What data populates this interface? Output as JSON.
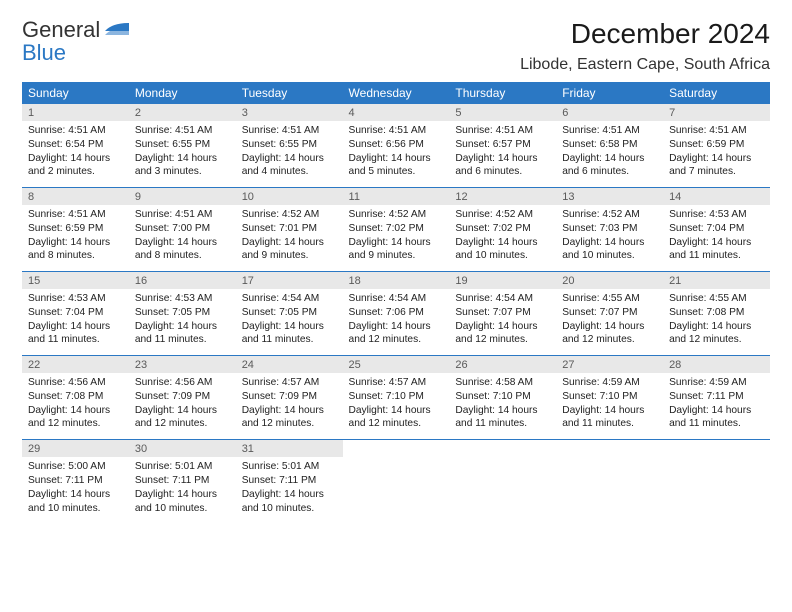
{
  "brand": {
    "word1": "General",
    "word2": "Blue"
  },
  "title": "December 2024",
  "location": "Libode, Eastern Cape, South Africa",
  "colors": {
    "header_bg": "#2b78c4",
    "header_text": "#ffffff",
    "daynum_bg": "#e8e8e8",
    "daynum_text": "#5a5a5a",
    "cell_text": "#222222",
    "rule": "#2b78c4",
    "page_bg": "#ffffff"
  },
  "day_headers": [
    "Sunday",
    "Monday",
    "Tuesday",
    "Wednesday",
    "Thursday",
    "Friday",
    "Saturday"
  ],
  "weeks": [
    [
      {
        "n": "1",
        "sr": "4:51 AM",
        "ss": "6:54 PM",
        "dl": "14 hours and 2 minutes."
      },
      {
        "n": "2",
        "sr": "4:51 AM",
        "ss": "6:55 PM",
        "dl": "14 hours and 3 minutes."
      },
      {
        "n": "3",
        "sr": "4:51 AM",
        "ss": "6:55 PM",
        "dl": "14 hours and 4 minutes."
      },
      {
        "n": "4",
        "sr": "4:51 AM",
        "ss": "6:56 PM",
        "dl": "14 hours and 5 minutes."
      },
      {
        "n": "5",
        "sr": "4:51 AM",
        "ss": "6:57 PM",
        "dl": "14 hours and 6 minutes."
      },
      {
        "n": "6",
        "sr": "4:51 AM",
        "ss": "6:58 PM",
        "dl": "14 hours and 6 minutes."
      },
      {
        "n": "7",
        "sr": "4:51 AM",
        "ss": "6:59 PM",
        "dl": "14 hours and 7 minutes."
      }
    ],
    [
      {
        "n": "8",
        "sr": "4:51 AM",
        "ss": "6:59 PM",
        "dl": "14 hours and 8 minutes."
      },
      {
        "n": "9",
        "sr": "4:51 AM",
        "ss": "7:00 PM",
        "dl": "14 hours and 8 minutes."
      },
      {
        "n": "10",
        "sr": "4:52 AM",
        "ss": "7:01 PM",
        "dl": "14 hours and 9 minutes."
      },
      {
        "n": "11",
        "sr": "4:52 AM",
        "ss": "7:02 PM",
        "dl": "14 hours and 9 minutes."
      },
      {
        "n": "12",
        "sr": "4:52 AM",
        "ss": "7:02 PM",
        "dl": "14 hours and 10 minutes."
      },
      {
        "n": "13",
        "sr": "4:52 AM",
        "ss": "7:03 PM",
        "dl": "14 hours and 10 minutes."
      },
      {
        "n": "14",
        "sr": "4:53 AM",
        "ss": "7:04 PM",
        "dl": "14 hours and 11 minutes."
      }
    ],
    [
      {
        "n": "15",
        "sr": "4:53 AM",
        "ss": "7:04 PM",
        "dl": "14 hours and 11 minutes."
      },
      {
        "n": "16",
        "sr": "4:53 AM",
        "ss": "7:05 PM",
        "dl": "14 hours and 11 minutes."
      },
      {
        "n": "17",
        "sr": "4:54 AM",
        "ss": "7:05 PM",
        "dl": "14 hours and 11 minutes."
      },
      {
        "n": "18",
        "sr": "4:54 AM",
        "ss": "7:06 PM",
        "dl": "14 hours and 12 minutes."
      },
      {
        "n": "19",
        "sr": "4:54 AM",
        "ss": "7:07 PM",
        "dl": "14 hours and 12 minutes."
      },
      {
        "n": "20",
        "sr": "4:55 AM",
        "ss": "7:07 PM",
        "dl": "14 hours and 12 minutes."
      },
      {
        "n": "21",
        "sr": "4:55 AM",
        "ss": "7:08 PM",
        "dl": "14 hours and 12 minutes."
      }
    ],
    [
      {
        "n": "22",
        "sr": "4:56 AM",
        "ss": "7:08 PM",
        "dl": "14 hours and 12 minutes."
      },
      {
        "n": "23",
        "sr": "4:56 AM",
        "ss": "7:09 PM",
        "dl": "14 hours and 12 minutes."
      },
      {
        "n": "24",
        "sr": "4:57 AM",
        "ss": "7:09 PM",
        "dl": "14 hours and 12 minutes."
      },
      {
        "n": "25",
        "sr": "4:57 AM",
        "ss": "7:10 PM",
        "dl": "14 hours and 12 minutes."
      },
      {
        "n": "26",
        "sr": "4:58 AM",
        "ss": "7:10 PM",
        "dl": "14 hours and 11 minutes."
      },
      {
        "n": "27",
        "sr": "4:59 AM",
        "ss": "7:10 PM",
        "dl": "14 hours and 11 minutes."
      },
      {
        "n": "28",
        "sr": "4:59 AM",
        "ss": "7:11 PM",
        "dl": "14 hours and 11 minutes."
      }
    ],
    [
      {
        "n": "29",
        "sr": "5:00 AM",
        "ss": "7:11 PM",
        "dl": "14 hours and 10 minutes."
      },
      {
        "n": "30",
        "sr": "5:01 AM",
        "ss": "7:11 PM",
        "dl": "14 hours and 10 minutes."
      },
      {
        "n": "31",
        "sr": "5:01 AM",
        "ss": "7:11 PM",
        "dl": "14 hours and 10 minutes."
      },
      null,
      null,
      null,
      null
    ]
  ],
  "labels": {
    "sunrise": "Sunrise: ",
    "sunset": "Sunset: ",
    "daylight": "Daylight: "
  }
}
